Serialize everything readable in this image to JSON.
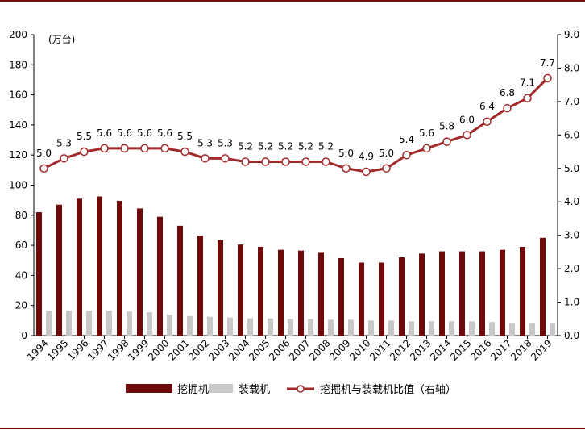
{
  "chart_data": {
    "type": "bar",
    "unit_label": "(万台)",
    "categories": [
      "1994",
      "1995",
      "1996",
      "1997",
      "1998",
      "1999",
      "2000",
      "2001",
      "2002",
      "2003",
      "2004",
      "2005",
      "2006",
      "2007",
      "2008",
      "2009",
      "2010",
      "2011",
      "2012",
      "2013",
      "2014",
      "2015",
      "2016",
      "2017",
      "2018",
      "2019"
    ],
    "series": [
      {
        "name": "挖掘机",
        "kind": "bar",
        "axis": "left",
        "color": "#6e0a0a",
        "values": [
          82,
          87,
          91,
          92.5,
          89.5,
          84.5,
          79,
          73,
          66.5,
          63.5,
          60.5,
          59,
          57,
          56.5,
          55.5,
          51.5,
          48.5,
          48.5,
          52,
          54.5,
          56,
          56,
          56,
          57,
          59,
          65
        ]
      },
      {
        "name": "装载机",
        "kind": "bar",
        "axis": "left",
        "color": "#c8c8c8",
        "values": [
          16.5,
          16.5,
          16.5,
          16.5,
          16,
          15.5,
          14,
          13,
          12.5,
          12,
          11.5,
          11.5,
          11,
          11,
          10.5,
          10.5,
          10,
          10,
          9.5,
          9.5,
          9.5,
          9.5,
          9,
          8.5,
          8.5,
          8.5
        ]
      },
      {
        "name": "挖掘机与装载机比值（右轴）",
        "kind": "line",
        "axis": "right",
        "color": "#a32a2a",
        "values": [
          5.0,
          5.3,
          5.5,
          5.6,
          5.6,
          5.6,
          5.6,
          5.5,
          5.3,
          5.3,
          5.2,
          5.2,
          5.2,
          5.2,
          5.2,
          5.0,
          4.9,
          5.0,
          5.4,
          5.6,
          5.8,
          6.0,
          6.4,
          6.8,
          7.1,
          7.7
        ],
        "labels": [
          "5.0",
          "5.3",
          "5.5",
          "5.6",
          "5.6",
          "5.6",
          "5.6",
          "5.5",
          "5.3",
          "5.3",
          "5.2",
          "5.2",
          "5.2",
          "5.2",
          "5.2",
          "5.0",
          "4.9",
          "5.0",
          "5.4",
          "5.6",
          "5.8",
          "6.0",
          "6.4",
          "6.8",
          "7.1",
          "7.7"
        ]
      }
    ],
    "y_left": {
      "ylim": [
        0,
        200
      ],
      "ticks": [
        "0",
        "20",
        "40",
        "60",
        "80",
        "100",
        "120",
        "140",
        "160",
        "180",
        "200"
      ]
    },
    "y_right": {
      "ylim": [
        0,
        9
      ],
      "ticks": [
        "0.0",
        "1.0",
        "2.0",
        "3.0",
        "4.0",
        "5.0",
        "6.0",
        "7.0",
        "8.0",
        "9.0"
      ]
    },
    "legend_position": "bottom"
  }
}
